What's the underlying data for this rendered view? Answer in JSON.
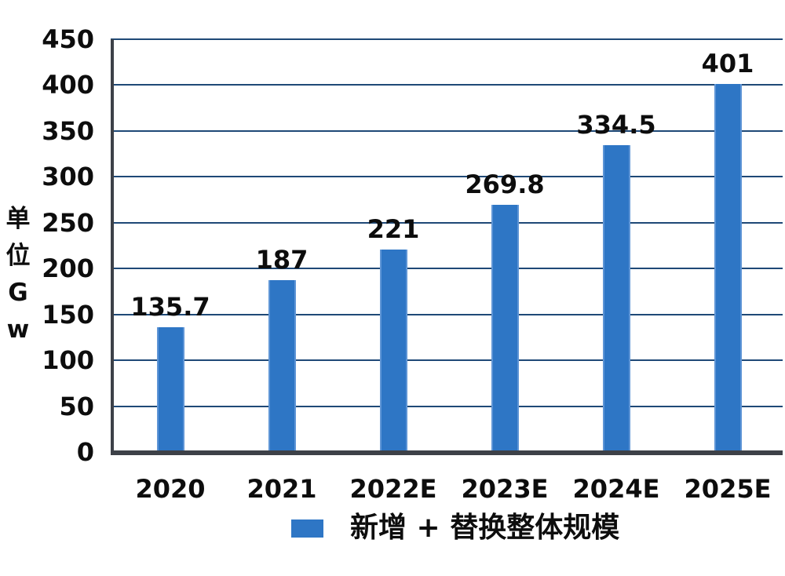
{
  "chart_data": {
    "type": "bar",
    "title": "",
    "categories": [
      "2020",
      "2021",
      "2022E",
      "2023E",
      "2024E",
      "2025E"
    ],
    "values": [
      135.7,
      187,
      221,
      269.8,
      334.5,
      401
    ],
    "value_labels": [
      "135.7",
      "187",
      "221",
      "269.8",
      "334.5",
      "401"
    ],
    "xlabel": "",
    "ylabel": "单位Gw",
    "ylabel_chars": [
      "单",
      "位",
      "G",
      "w"
    ],
    "ylim": [
      0,
      450
    ],
    "ytick_step": 50,
    "yticks": [
      0,
      50,
      100,
      150,
      200,
      250,
      300,
      350,
      400,
      450
    ],
    "grid": true,
    "legend": {
      "label": "新增 + 替换整体规模",
      "position": "bottom"
    },
    "colors": {
      "bar": "#2E76C5",
      "bar_edge": "#5E95D6",
      "gridline": "#1F4977",
      "axis": "#3D4148",
      "text": "#0D0D0D",
      "background": "#FFFFFF"
    }
  }
}
